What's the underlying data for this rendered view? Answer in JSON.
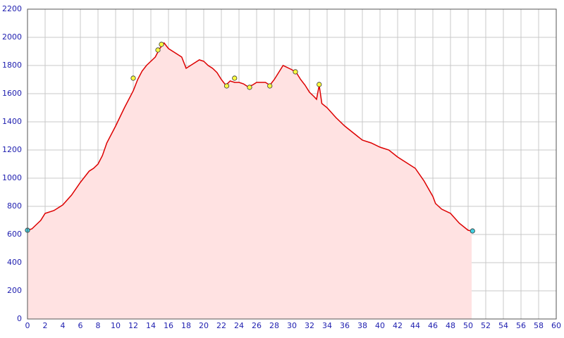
{
  "chart_data": {
    "type": "area",
    "xlim": [
      0,
      60
    ],
    "xticks": [
      0,
      2,
      4,
      6,
      8,
      10,
      12,
      14,
      16,
      18,
      20,
      22,
      24,
      26,
      28,
      30,
      32,
      34,
      36,
      38,
      40,
      42,
      44,
      46,
      48,
      50,
      52,
      54,
      56,
      58,
      60
    ],
    "ylim": [
      0,
      2200
    ],
    "yticks": [
      0,
      200,
      400,
      600,
      800,
      1000,
      1200,
      1400,
      1600,
      1800,
      2000,
      2200
    ],
    "grid": true,
    "profile": {
      "color": "#dd0000",
      "fill": "#ffe2e2",
      "x": [
        0,
        0.5,
        1,
        1.5,
        2,
        3,
        4,
        5,
        6,
        7,
        7.5,
        8,
        8.5,
        9,
        10,
        11,
        12,
        12.5,
        13,
        13.5,
        14,
        14.5,
        15,
        15.5,
        16,
        16.5,
        17,
        17.5,
        18,
        18.5,
        19,
        19.5,
        20,
        20.5,
        21,
        21.5,
        22,
        22.5,
        23,
        23.5,
        24,
        24.5,
        25,
        25.5,
        26,
        27,
        27.5,
        28,
        28.5,
        29,
        30,
        30.5,
        31,
        31.5,
        32,
        32.5,
        32.8,
        33.1,
        33.4,
        34,
        35,
        36,
        37,
        38,
        39,
        40,
        41,
        42,
        43,
        44,
        45,
        46,
        46.3,
        47,
        48,
        49,
        50,
        50.4
      ],
      "values": [
        630,
        640,
        670,
        700,
        750,
        770,
        810,
        880,
        970,
        1050,
        1070,
        1100,
        1160,
        1250,
        1370,
        1500,
        1620,
        1700,
        1760,
        1800,
        1830,
        1860,
        1920,
        1960,
        1920,
        1900,
        1880,
        1860,
        1780,
        1800,
        1820,
        1840,
        1830,
        1800,
        1780,
        1750,
        1700,
        1660,
        1690,
        1680,
        1680,
        1670,
        1650,
        1660,
        1680,
        1680,
        1660,
        1700,
        1750,
        1800,
        1770,
        1750,
        1700,
        1660,
        1610,
        1580,
        1560,
        1660,
        1530,
        1500,
        1430,
        1370,
        1320,
        1270,
        1250,
        1220,
        1200,
        1150,
        1110,
        1070,
        980,
        870,
        820,
        780,
        750,
        680,
        630,
        625
      ]
    },
    "waypoints": {
      "color": "#ffff40",
      "x": [
        12,
        14.8,
        15.2,
        22.6,
        23.5,
        25.2,
        27.5,
        30.4,
        33.1
      ],
      "values": [
        1710,
        1910,
        1950,
        1655,
        1710,
        1645,
        1655,
        1755,
        1665
      ]
    },
    "endpoints": {
      "color": "#40d0e0",
      "x": [
        0,
        50.5
      ],
      "values": [
        630,
        625
      ]
    }
  }
}
